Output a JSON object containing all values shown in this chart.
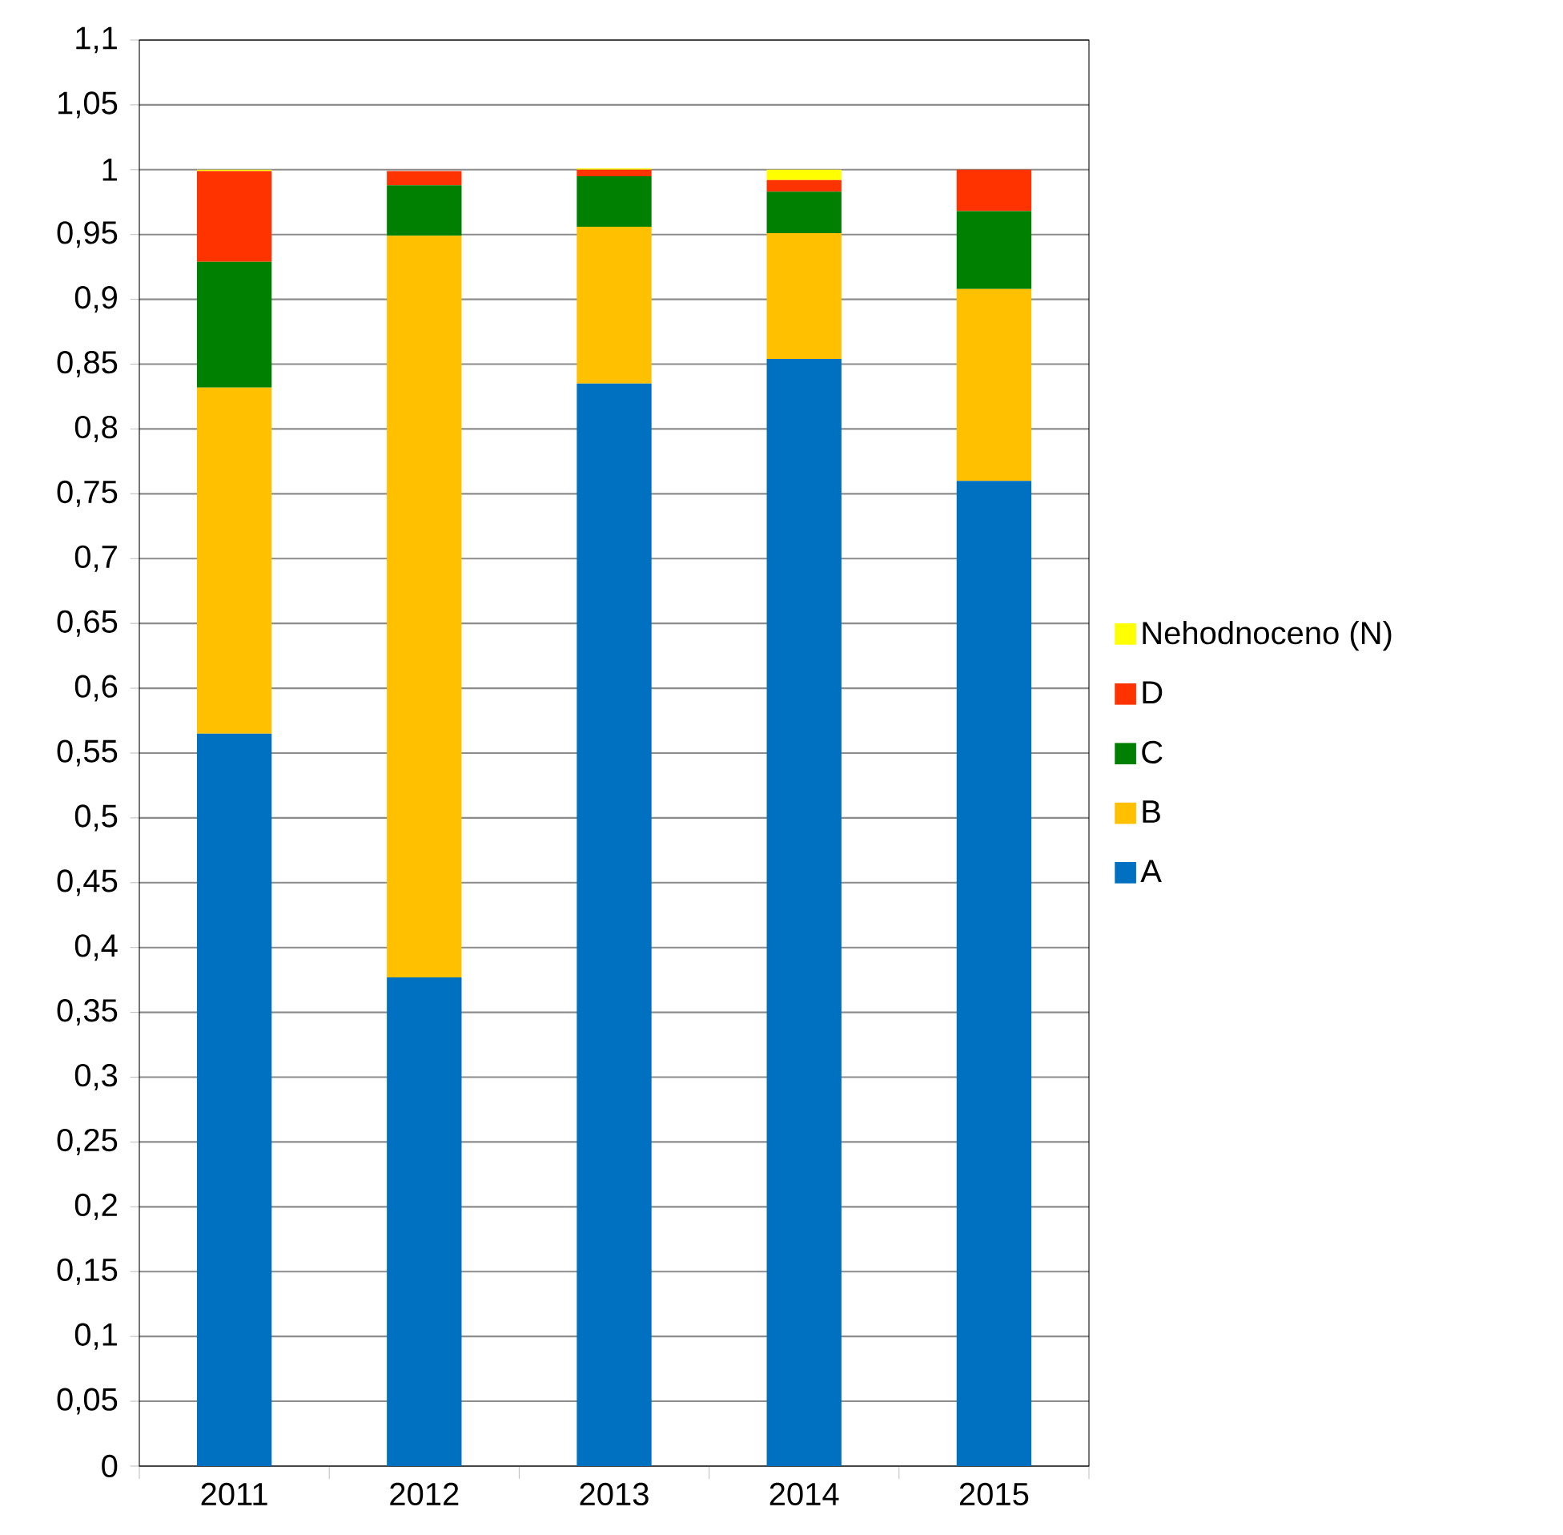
{
  "chart_data": {
    "type": "bar",
    "stacked": true,
    "categories": [
      "2011",
      "2012",
      "2013",
      "2014",
      "2015"
    ],
    "series": [
      {
        "name": "A",
        "color": "#0070c0",
        "values": [
          0.565,
          0.377,
          0.835,
          0.854,
          0.76
        ]
      },
      {
        "name": "B",
        "color": "#ffc000",
        "values": [
          0.267,
          0.572,
          0.121,
          0.097,
          0.148
        ]
      },
      {
        "name": "C",
        "color": "#008000",
        "values": [
          0.097,
          0.039,
          0.039,
          0.032,
          0.06
        ]
      },
      {
        "name": "D",
        "color": "#ff3300",
        "values": [
          0.07,
          0.011,
          0.005,
          0.009,
          0.032
        ]
      },
      {
        "name": "Nehodnoceno (N)",
        "color": "#ffff00",
        "values": [
          0.001,
          0,
          0.001,
          0.008,
          0
        ]
      }
    ],
    "ylim": [
      0,
      1.1
    ],
    "yticks": [
      0,
      {
        "value": 0.05,
        "label": "0,05"
      },
      {
        "value": 0.1,
        "label": "0,1"
      },
      {
        "value": 0.15,
        "label": "0,15"
      },
      {
        "value": 0.2,
        "label": "0,2"
      },
      {
        "value": 0.25,
        "label": "0,25"
      },
      {
        "value": 0.3,
        "label": "0,3"
      },
      {
        "value": 0.35,
        "label": "0,35"
      },
      {
        "value": 0.4,
        "label": "0,4"
      },
      {
        "value": 0.45,
        "label": "0,45"
      },
      {
        "value": 0.5,
        "label": "0,5"
      },
      {
        "value": 0.55,
        "label": "0,55"
      },
      {
        "value": 0.6,
        "label": "0,6"
      },
      {
        "value": 0.65,
        "label": "0,65"
      },
      {
        "value": 0.7,
        "label": "0,7"
      },
      {
        "value": 0.75,
        "label": "0,75"
      },
      {
        "value": 0.8,
        "label": "0,8"
      },
      {
        "value": 0.85,
        "label": "0,85"
      },
      {
        "value": 0.9,
        "label": "0,9"
      },
      {
        "value": 0.95,
        "label": "0,95"
      },
      1,
      {
        "value": 1.05,
        "label": "1,05"
      },
      {
        "value": 1.1,
        "label": "1,1"
      }
    ],
    "grid": "y",
    "legend": "right"
  }
}
